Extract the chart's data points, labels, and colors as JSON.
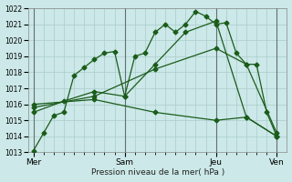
{
  "title": "",
  "xlabel": "Pression niveau de la mer( hPa )",
  "ylabel": "",
  "ylim": [
    1013,
    1022
  ],
  "yticks": [
    1013,
    1014,
    1015,
    1016,
    1017,
    1018,
    1019,
    1020,
    1021,
    1022
  ],
  "xtick_labels": [
    "Mer",
    "Sam",
    "Jeu",
    "Ven"
  ],
  "xtick_positions": [
    0,
    9,
    18,
    24
  ],
  "bg_color": "#cce8e8",
  "grid_color": "#aacccc",
  "line_color": "#1a5c1a",
  "series": [
    {
      "x": [
        0,
        1,
        2,
        3,
        4,
        5,
        6,
        7,
        8,
        9,
        10,
        11,
        12,
        13,
        14,
        15,
        16,
        17,
        18,
        19,
        20,
        21,
        22,
        23,
        24
      ],
      "y": [
        1013.1,
        1014.2,
        1015.3,
        1015.5,
        1017.8,
        1018.3,
        1018.8,
        1019.2,
        1019.3,
        1016.5,
        1019.0,
        1019.2,
        1020.5,
        1021.0,
        1020.5,
        1021.0,
        1021.8,
        1021.5,
        1021.0,
        1021.1,
        1019.2,
        1018.5,
        1018.5,
        1015.5,
        1014.0
      ],
      "style": "-",
      "marker": "D",
      "markersize": 2.5
    },
    {
      "x": [
        0,
        3,
        6,
        9,
        12,
        15,
        18,
        21,
        24
      ],
      "y": [
        1015.5,
        1016.2,
        1016.8,
        1016.5,
        1018.5,
        1020.5,
        1021.2,
        1015.2,
        1014.0
      ],
      "style": "-",
      "marker": "D",
      "markersize": 2.5
    },
    {
      "x": [
        0,
        6,
        12,
        18,
        21,
        24
      ],
      "y": [
        1015.8,
        1016.5,
        1018.2,
        1019.5,
        1018.5,
        1014.2
      ],
      "style": "-",
      "marker": "D",
      "markersize": 2.5
    },
    {
      "x": [
        0,
        6,
        12,
        18,
        21,
        24
      ],
      "y": [
        1016.0,
        1016.3,
        1015.5,
        1015.0,
        1015.2,
        1014.0
      ],
      "style": "-",
      "marker": "D",
      "markersize": 2.5
    }
  ],
  "vlines": [
    0,
    9,
    18,
    24
  ],
  "xlim": [
    -0.5,
    25
  ],
  "figsize": [
    3.2,
    2.0
  ],
  "dpi": 100
}
